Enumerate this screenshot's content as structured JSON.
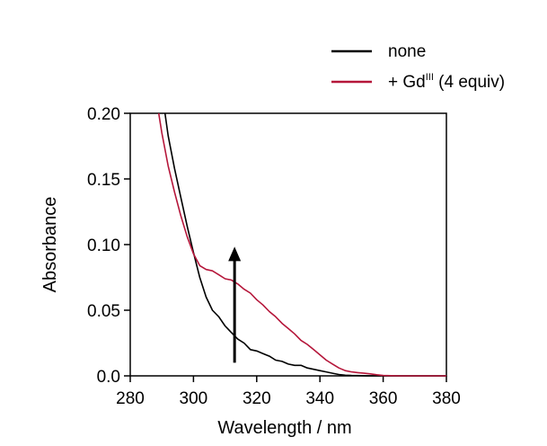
{
  "chart_data": {
    "type": "line",
    "title": "",
    "xlabel": "Wavelength / nm",
    "ylabel": "Absorbance",
    "xlim": [
      280,
      380
    ],
    "ylim": [
      0,
      0.2
    ],
    "xticks": [
      "280",
      "300",
      "320",
      "340",
      "360",
      "380"
    ],
    "yticks": [
      "0.0",
      "0.05",
      "0.10",
      "0.15",
      "0.20"
    ],
    "grid": false,
    "legend_position": "top-right",
    "legend": {
      "none_label": "none",
      "gd_prefix": "+ Gd",
      "gd_sup": "III",
      "gd_suffix": " (4 equiv)"
    },
    "series": [
      {
        "name": "none",
        "color": "#000000",
        "x": [
          291,
          292,
          294,
          296,
          298,
          300,
          302,
          304,
          306,
          308,
          310,
          312,
          314,
          316,
          318,
          320,
          322,
          324,
          326,
          328,
          330,
          332,
          334,
          336,
          338,
          340,
          342,
          344,
          346,
          348,
          350,
          355,
          360,
          370,
          380
        ],
        "y": [
          0.2,
          0.183,
          0.158,
          0.136,
          0.114,
          0.094,
          0.075,
          0.06,
          0.05,
          0.045,
          0.038,
          0.033,
          0.028,
          0.025,
          0.02,
          0.019,
          0.017,
          0.015,
          0.012,
          0.011,
          0.009,
          0.008,
          0.008,
          0.006,
          0.005,
          0.004,
          0.003,
          0.002,
          0.001,
          0.0005,
          0.0003,
          0.0001,
          0.0,
          0.0,
          0.0
        ]
      },
      {
        "name": "+ GdIII (4 equiv)",
        "color": "#b5163a",
        "x": [
          289,
          290,
          292,
          294,
          296,
          298,
          300,
          302,
          304,
          306,
          308,
          310,
          312,
          314,
          316,
          318,
          320,
          322,
          324,
          326,
          328,
          330,
          332,
          334,
          336,
          338,
          340,
          342,
          344,
          346,
          348,
          350,
          352,
          354,
          356,
          358,
          360,
          365,
          370,
          380
        ],
        "y": [
          0.2,
          0.185,
          0.16,
          0.14,
          0.122,
          0.106,
          0.093,
          0.084,
          0.081,
          0.08,
          0.077,
          0.074,
          0.073,
          0.07,
          0.066,
          0.063,
          0.058,
          0.054,
          0.049,
          0.045,
          0.04,
          0.036,
          0.032,
          0.027,
          0.024,
          0.02,
          0.016,
          0.012,
          0.009,
          0.006,
          0.004,
          0.003,
          0.0025,
          0.002,
          0.0015,
          0.0008,
          0.0003,
          0.0,
          0.0,
          0.0
        ]
      }
    ],
    "annotations": [
      {
        "type": "arrow",
        "direction": "up",
        "x": 313,
        "y_from": 0.01,
        "y_to": 0.097
      }
    ]
  }
}
